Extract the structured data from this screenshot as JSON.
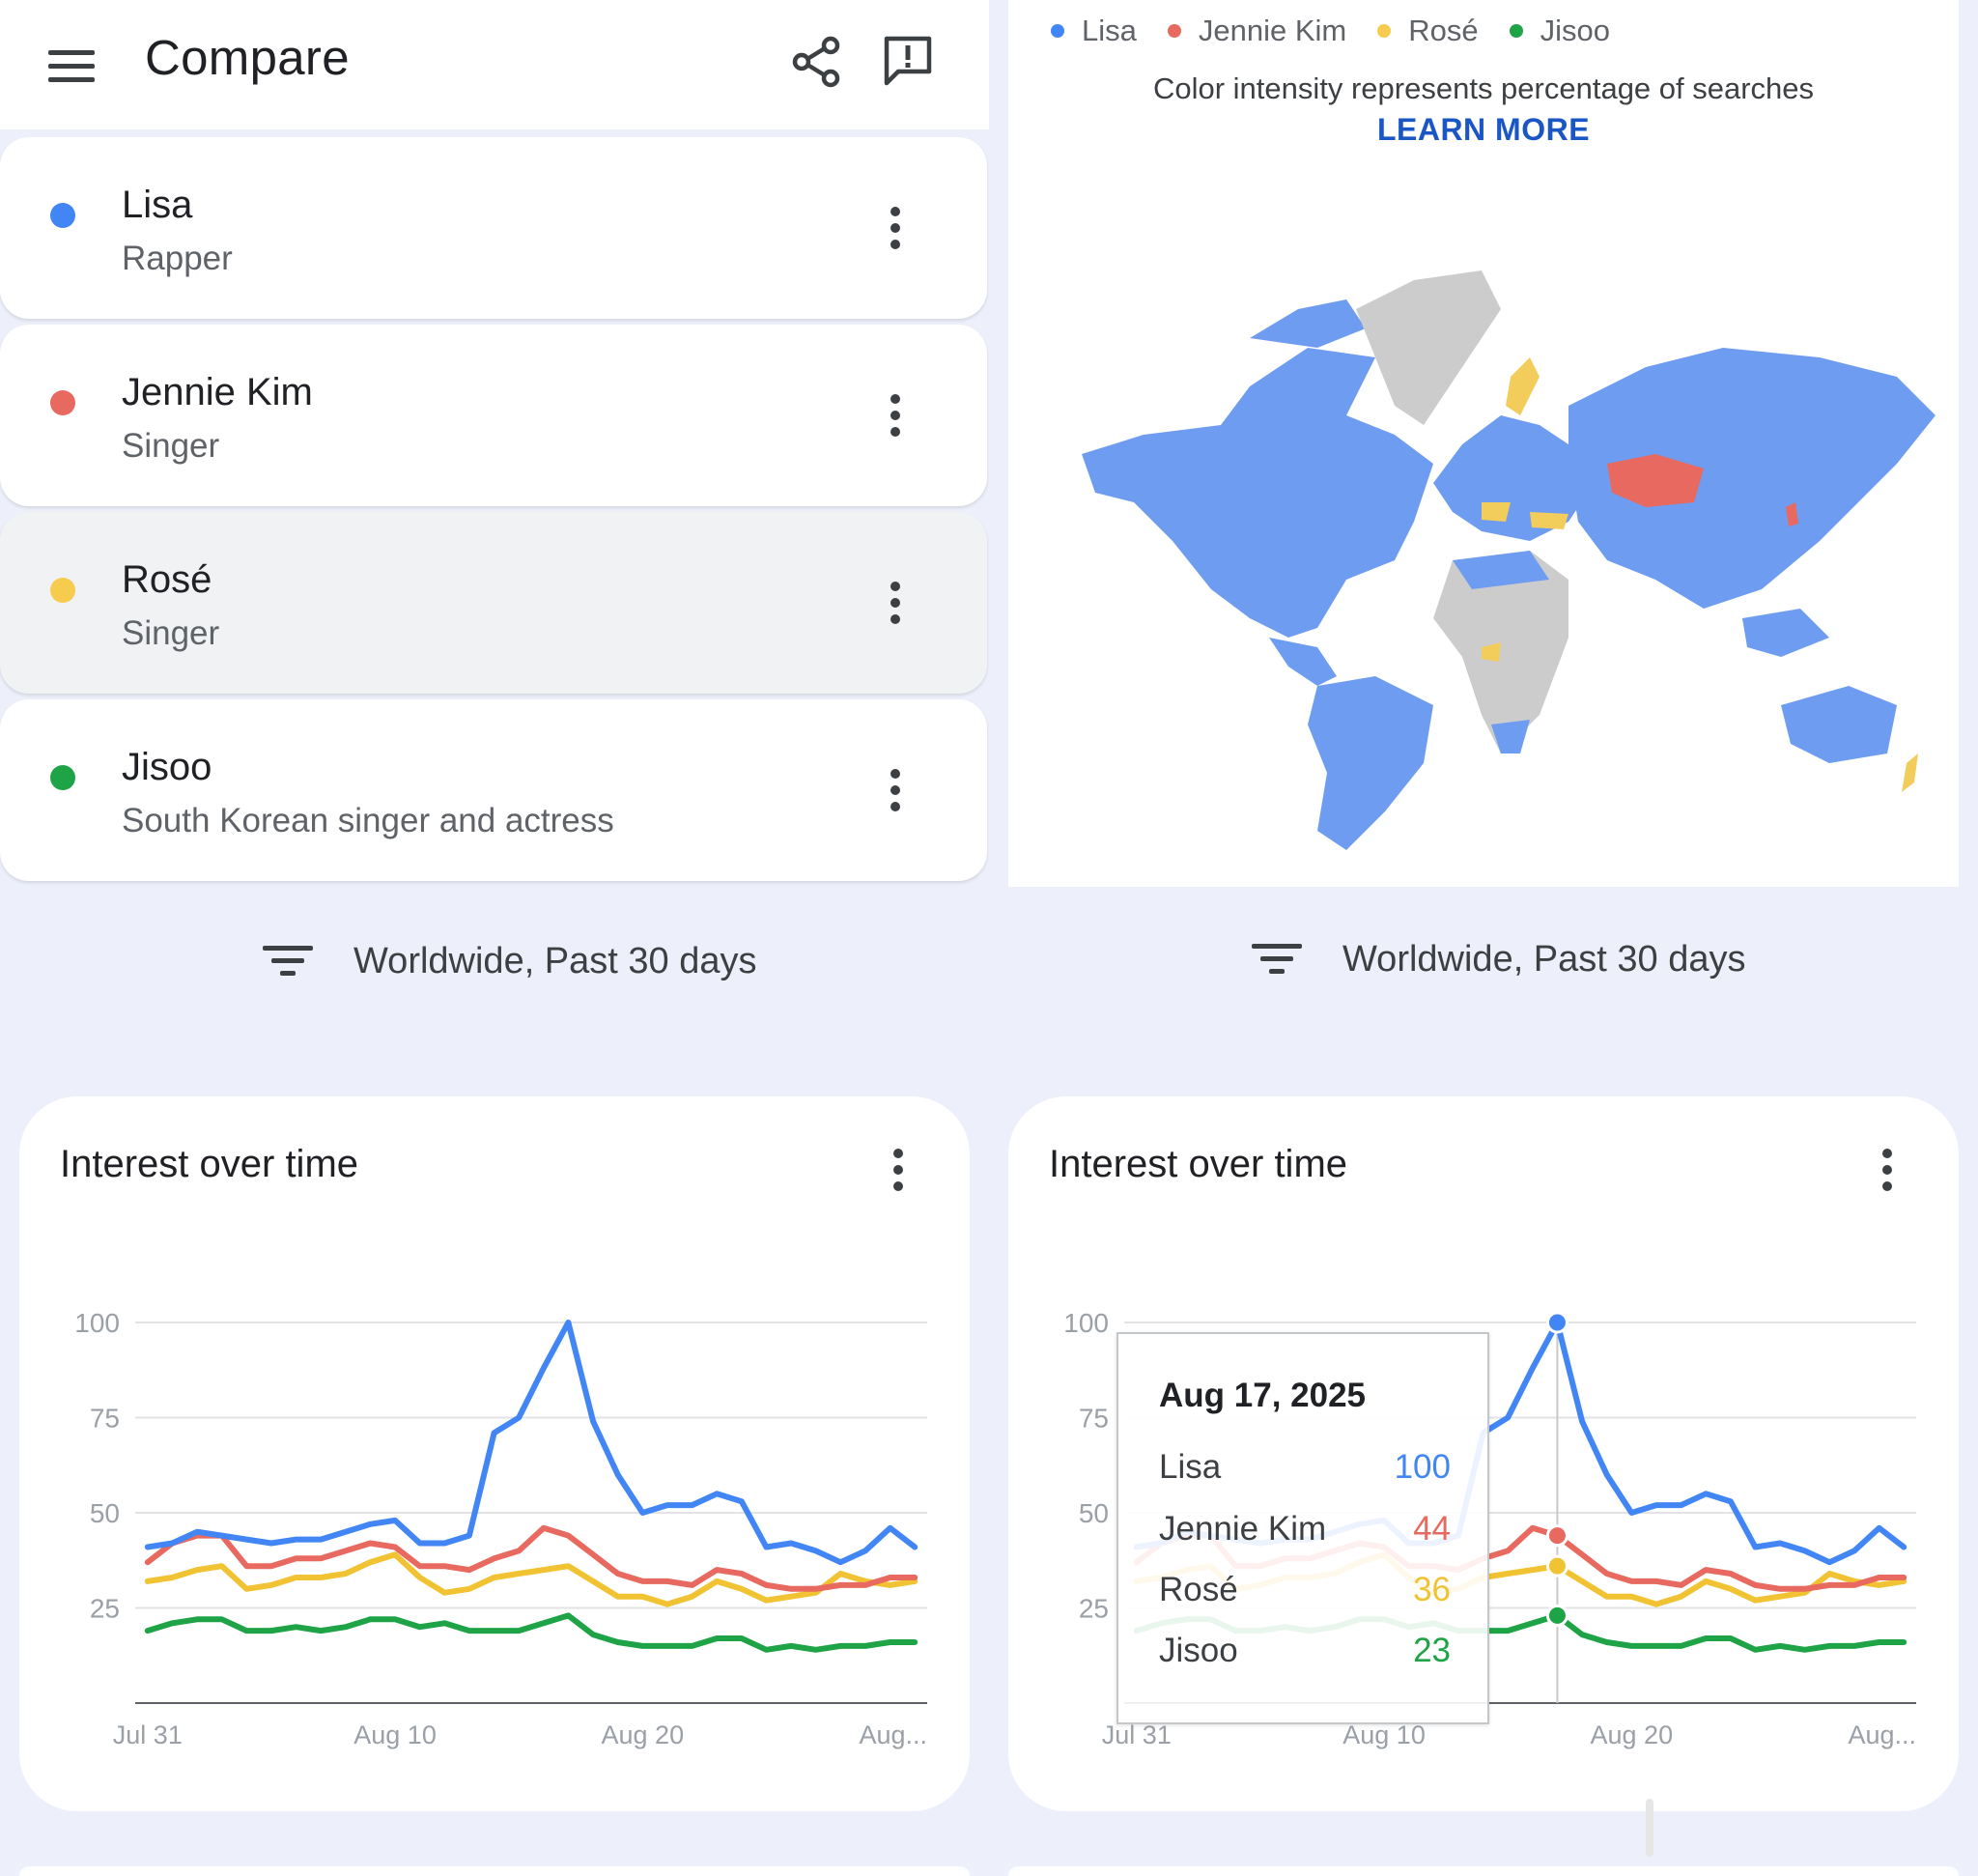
{
  "header": {
    "title": "Compare",
    "icons": [
      "menu-icon",
      "share-icon",
      "feedback-icon"
    ]
  },
  "terms": [
    {
      "name": "Lisa",
      "subtitle": "Rapper",
      "color": "#4285f4"
    },
    {
      "name": "Jennie Kim",
      "subtitle": "Singer",
      "color": "#e8695f"
    },
    {
      "name": "Rosé",
      "subtitle": "Singer",
      "color": "#f7cb4d"
    },
    {
      "name": "Jisoo",
      "subtitle": "South Korean singer and actress",
      "color": "#1ea446"
    }
  ],
  "filters": {
    "left": "Worldwide, Past 30 days",
    "right": "Worldwide, Past 30 days"
  },
  "map": {
    "legend": [
      "Lisa",
      "Jennie Kim",
      "Rosé",
      "Jisoo"
    ],
    "caption": "Color intensity represents percentage of searches",
    "learn_more": "LEARN MORE",
    "colors": {
      "lisa": "#6e9cf0",
      "jennie": "#e8695f",
      "rose": "#f2cd5c",
      "no_data": "#cccccc"
    }
  },
  "charts": {
    "left": {
      "title": "Interest over time"
    },
    "right": {
      "title": "Interest over time",
      "tooltip": {
        "date": "Aug 17, 2025",
        "rows": [
          {
            "name": "Lisa",
            "value": "100",
            "color": "#4285f4"
          },
          {
            "name": "Jennie Kim",
            "value": "44",
            "color": "#e8695f"
          },
          {
            "name": "Rosé",
            "value": "36",
            "color": "#f1c232"
          },
          {
            "name": "Jisoo",
            "value": "23",
            "color": "#1ea446"
          }
        ]
      }
    }
  },
  "chart_data": [
    {
      "type": "line",
      "title": "Interest over time",
      "ylim": [
        0,
        100
      ],
      "yticks": [
        100,
        75,
        50,
        25
      ],
      "xticks": [
        "Jul 31",
        "Aug 10",
        "Aug 20",
        "Aug..."
      ],
      "x": [
        "Jul 31",
        "Aug 1",
        "Aug 2",
        "Aug 3",
        "Aug 4",
        "Aug 5",
        "Aug 6",
        "Aug 7",
        "Aug 8",
        "Aug 9",
        "Aug 10",
        "Aug 11",
        "Aug 12",
        "Aug 13",
        "Aug 14",
        "Aug 15",
        "Aug 16",
        "Aug 17",
        "Aug 18",
        "Aug 19",
        "Aug 20",
        "Aug 21",
        "Aug 22",
        "Aug 23",
        "Aug 24",
        "Aug 25",
        "Aug 26",
        "Aug 27",
        "Aug 28",
        "Aug 29",
        "Aug 30",
        "Aug 31"
      ],
      "grid": true,
      "series": [
        {
          "name": "Lisa",
          "color": "#4285f4",
          "values": [
            41,
            42,
            45,
            44,
            43,
            42,
            43,
            43,
            45,
            47,
            48,
            42,
            42,
            44,
            71,
            75,
            88,
            100,
            74,
            60,
            50,
            52,
            52,
            55,
            53,
            41,
            42,
            40,
            37,
            40,
            46,
            41
          ]
        },
        {
          "name": "Jennie Kim",
          "color": "#e8695f",
          "values": [
            37,
            42,
            44,
            44,
            36,
            36,
            38,
            38,
            40,
            42,
            41,
            36,
            36,
            35,
            38,
            40,
            46,
            44,
            39,
            34,
            32,
            32,
            31,
            35,
            34,
            31,
            30,
            30,
            31,
            31,
            33,
            33
          ]
        },
        {
          "name": "Rosé",
          "color": "#f1c232",
          "values": [
            32,
            33,
            35,
            36,
            30,
            31,
            33,
            33,
            34,
            37,
            39,
            33,
            29,
            30,
            33,
            34,
            35,
            36,
            32,
            28,
            28,
            26,
            28,
            32,
            30,
            27,
            28,
            29,
            34,
            32,
            31,
            32
          ]
        },
        {
          "name": "Jisoo",
          "color": "#1ea446",
          "values": [
            19,
            21,
            22,
            22,
            19,
            19,
            20,
            19,
            20,
            22,
            22,
            20,
            21,
            19,
            19,
            19,
            21,
            23,
            18,
            16,
            15,
            15,
            15,
            17,
            17,
            14,
            15,
            14,
            15,
            15,
            16,
            16
          ]
        }
      ]
    },
    {
      "type": "line",
      "title": "Interest over time",
      "ylim": [
        0,
        100
      ],
      "yticks": [
        100,
        75,
        50,
        25
      ],
      "xticks": [
        "Jul 31",
        "Aug 10",
        "Aug 20",
        "Aug..."
      ],
      "x": [
        "Jul 31",
        "Aug 1",
        "Aug 2",
        "Aug 3",
        "Aug 4",
        "Aug 5",
        "Aug 6",
        "Aug 7",
        "Aug 8",
        "Aug 9",
        "Aug 10",
        "Aug 11",
        "Aug 12",
        "Aug 13",
        "Aug 14",
        "Aug 15",
        "Aug 16",
        "Aug 17",
        "Aug 18",
        "Aug 19",
        "Aug 20",
        "Aug 21",
        "Aug 22",
        "Aug 23",
        "Aug 24",
        "Aug 25",
        "Aug 26",
        "Aug 27",
        "Aug 28",
        "Aug 29",
        "Aug 30",
        "Aug 31"
      ],
      "grid": true,
      "highlight": "Aug 17",
      "series": [
        {
          "name": "Lisa",
          "color": "#4285f4",
          "values": [
            41,
            42,
            45,
            44,
            43,
            42,
            43,
            43,
            45,
            47,
            48,
            42,
            42,
            44,
            71,
            75,
            88,
            100,
            74,
            60,
            50,
            52,
            52,
            55,
            53,
            41,
            42,
            40,
            37,
            40,
            46,
            41
          ]
        },
        {
          "name": "Jennie Kim",
          "color": "#e8695f",
          "values": [
            37,
            42,
            44,
            44,
            36,
            36,
            38,
            38,
            40,
            42,
            41,
            36,
            36,
            35,
            38,
            40,
            46,
            44,
            39,
            34,
            32,
            32,
            31,
            35,
            34,
            31,
            30,
            30,
            31,
            31,
            33,
            33
          ]
        },
        {
          "name": "Rosé",
          "color": "#f1c232",
          "values": [
            32,
            33,
            35,
            36,
            30,
            31,
            33,
            33,
            34,
            37,
            39,
            33,
            29,
            30,
            33,
            34,
            35,
            36,
            32,
            28,
            28,
            26,
            28,
            32,
            30,
            27,
            28,
            29,
            34,
            32,
            31,
            32
          ]
        },
        {
          "name": "Jisoo",
          "color": "#1ea446",
          "values": [
            19,
            21,
            22,
            22,
            19,
            19,
            20,
            19,
            20,
            22,
            22,
            20,
            21,
            19,
            19,
            19,
            21,
            23,
            18,
            16,
            15,
            15,
            15,
            17,
            17,
            14,
            15,
            14,
            15,
            15,
            16,
            16
          ]
        }
      ]
    }
  ]
}
